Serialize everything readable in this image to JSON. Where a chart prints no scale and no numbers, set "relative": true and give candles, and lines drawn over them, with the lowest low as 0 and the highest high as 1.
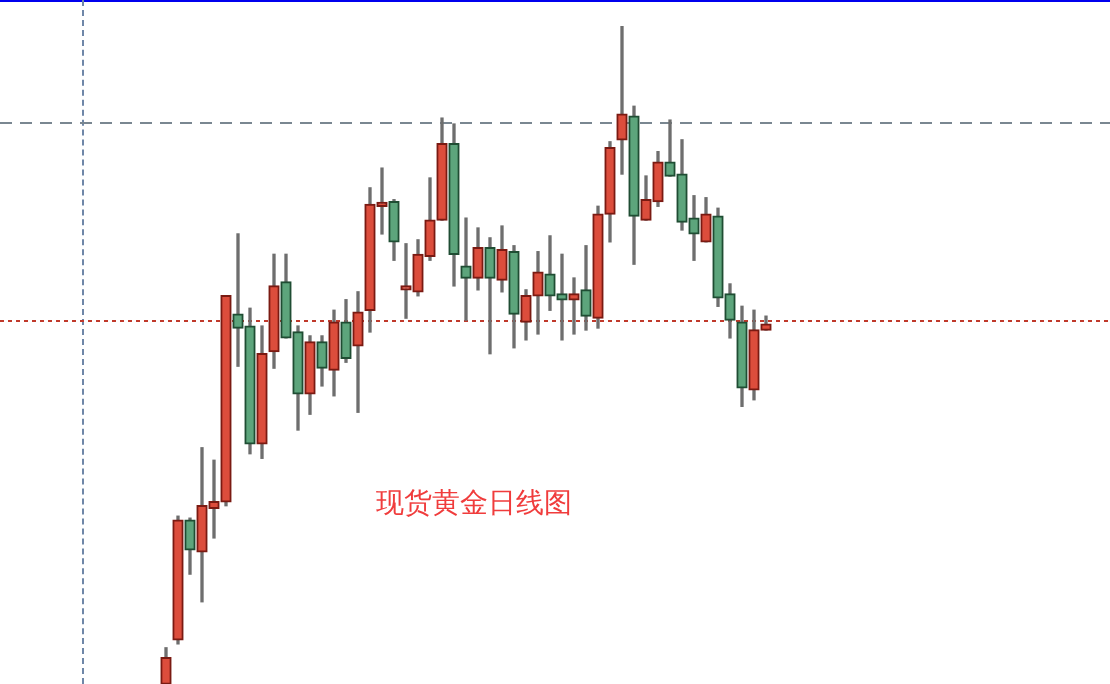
{
  "chart_data": {
    "type": "candlestick",
    "relative": true,
    "annotations": [
      "现货黄金日线图"
    ],
    "categories": [
      null,
      null,
      null,
      null,
      null,
      null,
      null,
      null,
      null,
      null,
      null,
      null,
      null,
      null,
      null,
      null,
      null,
      null,
      null,
      null,
      null,
      null,
      null,
      null,
      null,
      null,
      null,
      null,
      null,
      null,
      null,
      null,
      null,
      null,
      null,
      null,
      null,
      null,
      null,
      null,
      null,
      null,
      null,
      null,
      null,
      null,
      null,
      null,
      null,
      null,
      null
    ],
    "ohlc": [
      [
        0,
        0.055,
        0,
        0.04
      ],
      [
        0.067,
        0.255,
        0.061,
        0.249
      ],
      [
        0.249,
        0.252,
        0.167,
        0.204
      ],
      [
        0.201,
        0.359,
        0.125,
        0.271
      ],
      [
        0.267,
        0.34,
        0.222,
        0.277
      ],
      [
        0.277,
        0.59,
        0.271,
        0.59
      ],
      [
        0.562,
        0.684,
        0.483,
        0.541
      ],
      [
        0.544,
        0.571,
        0.35,
        0.365
      ],
      [
        0.365,
        0.544,
        0.343,
        0.502
      ],
      [
        0.505,
        0.653,
        0.48,
        0.605
      ],
      [
        0.611,
        0.653,
        0.526,
        0.526
      ],
      [
        0.535,
        0.544,
        0.386,
        0.441
      ],
      [
        0.441,
        0.529,
        0.41,
        0.52
      ],
      [
        0.52,
        0.529,
        0.453,
        0.48
      ],
      [
        0.477,
        0.568,
        0.438,
        0.55
      ],
      [
        0.55,
        0.584,
        0.489,
        0.495
      ],
      [
        0.514,
        0.596,
        0.413,
        0.565
      ],
      [
        0.568,
        0.754,
        0.535,
        0.729
      ],
      [
        0.726,
        0.784,
        0.684,
        0.729
      ],
      [
        0.733,
        0.736,
        0.644,
        0.672
      ],
      [
        0.599,
        0.669,
        0.556,
        0.599
      ],
      [
        0.596,
        0.675,
        0.59,
        0.653
      ],
      [
        0.65,
        0.769,
        0.644,
        0.705
      ],
      [
        0.705,
        0.86,
        0.705,
        0.821
      ],
      [
        0.821,
        0.851,
        0.605,
        0.653
      ],
      [
        0.635,
        0.708,
        0.553,
        0.617
      ],
      [
        0.617,
        0.693,
        0.599,
        0.663
      ],
      [
        0.663,
        0.678,
        0.502,
        0.617
      ],
      [
        0.614,
        0.696,
        0.596,
        0.66
      ],
      [
        0.657,
        0.666,
        0.511,
        0.562
      ],
      [
        0.55,
        0.599,
        0.523,
        0.59
      ],
      [
        0.59,
        0.657,
        0.532,
        0.626
      ],
      [
        0.623,
        0.681,
        0.568,
        0.59
      ],
      [
        0.593,
        0.653,
        0.523,
        0.584
      ],
      [
        0.584,
        0.617,
        0.532,
        0.593
      ],
      [
        0.599,
        0.666,
        0.538,
        0.559
      ],
      [
        0.556,
        0.726,
        0.541,
        0.714
      ],
      [
        0.714,
        0.824,
        0.672,
        0.815
      ],
      [
        0.827,
        1,
        0.775,
        0.866
      ],
      [
        0.863,
        0.878,
        0.638,
        0.711
      ],
      [
        0.705,
        0.772,
        0.705,
        0.736
      ],
      [
        0.733,
        0.809,
        0.726,
        0.793
      ],
      [
        0.793,
        0.857,
        0.772,
        0.772
      ],
      [
        0.775,
        0.827,
        0.69,
        0.702
      ],
      [
        0.708,
        0.742,
        0.644,
        0.684
      ],
      [
        0.672,
        0.739,
        0.672,
        0.714
      ],
      [
        0.711,
        0.723,
        0.574,
        0.587
      ],
      [
        0.593,
        0.608,
        0.526,
        0.553
      ],
      [
        0.55,
        0.574,
        0.422,
        0.45
      ],
      [
        0.447,
        0.568,
        0.432,
        0.538
      ],
      [
        0.538,
        0.559,
        0.538,
        0.547
      ]
    ],
    "ref_lines": [
      {
        "axis": "y",
        "value": 0.854,
        "color": "#7a8791",
        "line_style": "dashed"
      },
      {
        "axis": "y",
        "value": 0.553,
        "color": "#c0392b",
        "line_style": "dotted"
      }
    ]
  }
}
